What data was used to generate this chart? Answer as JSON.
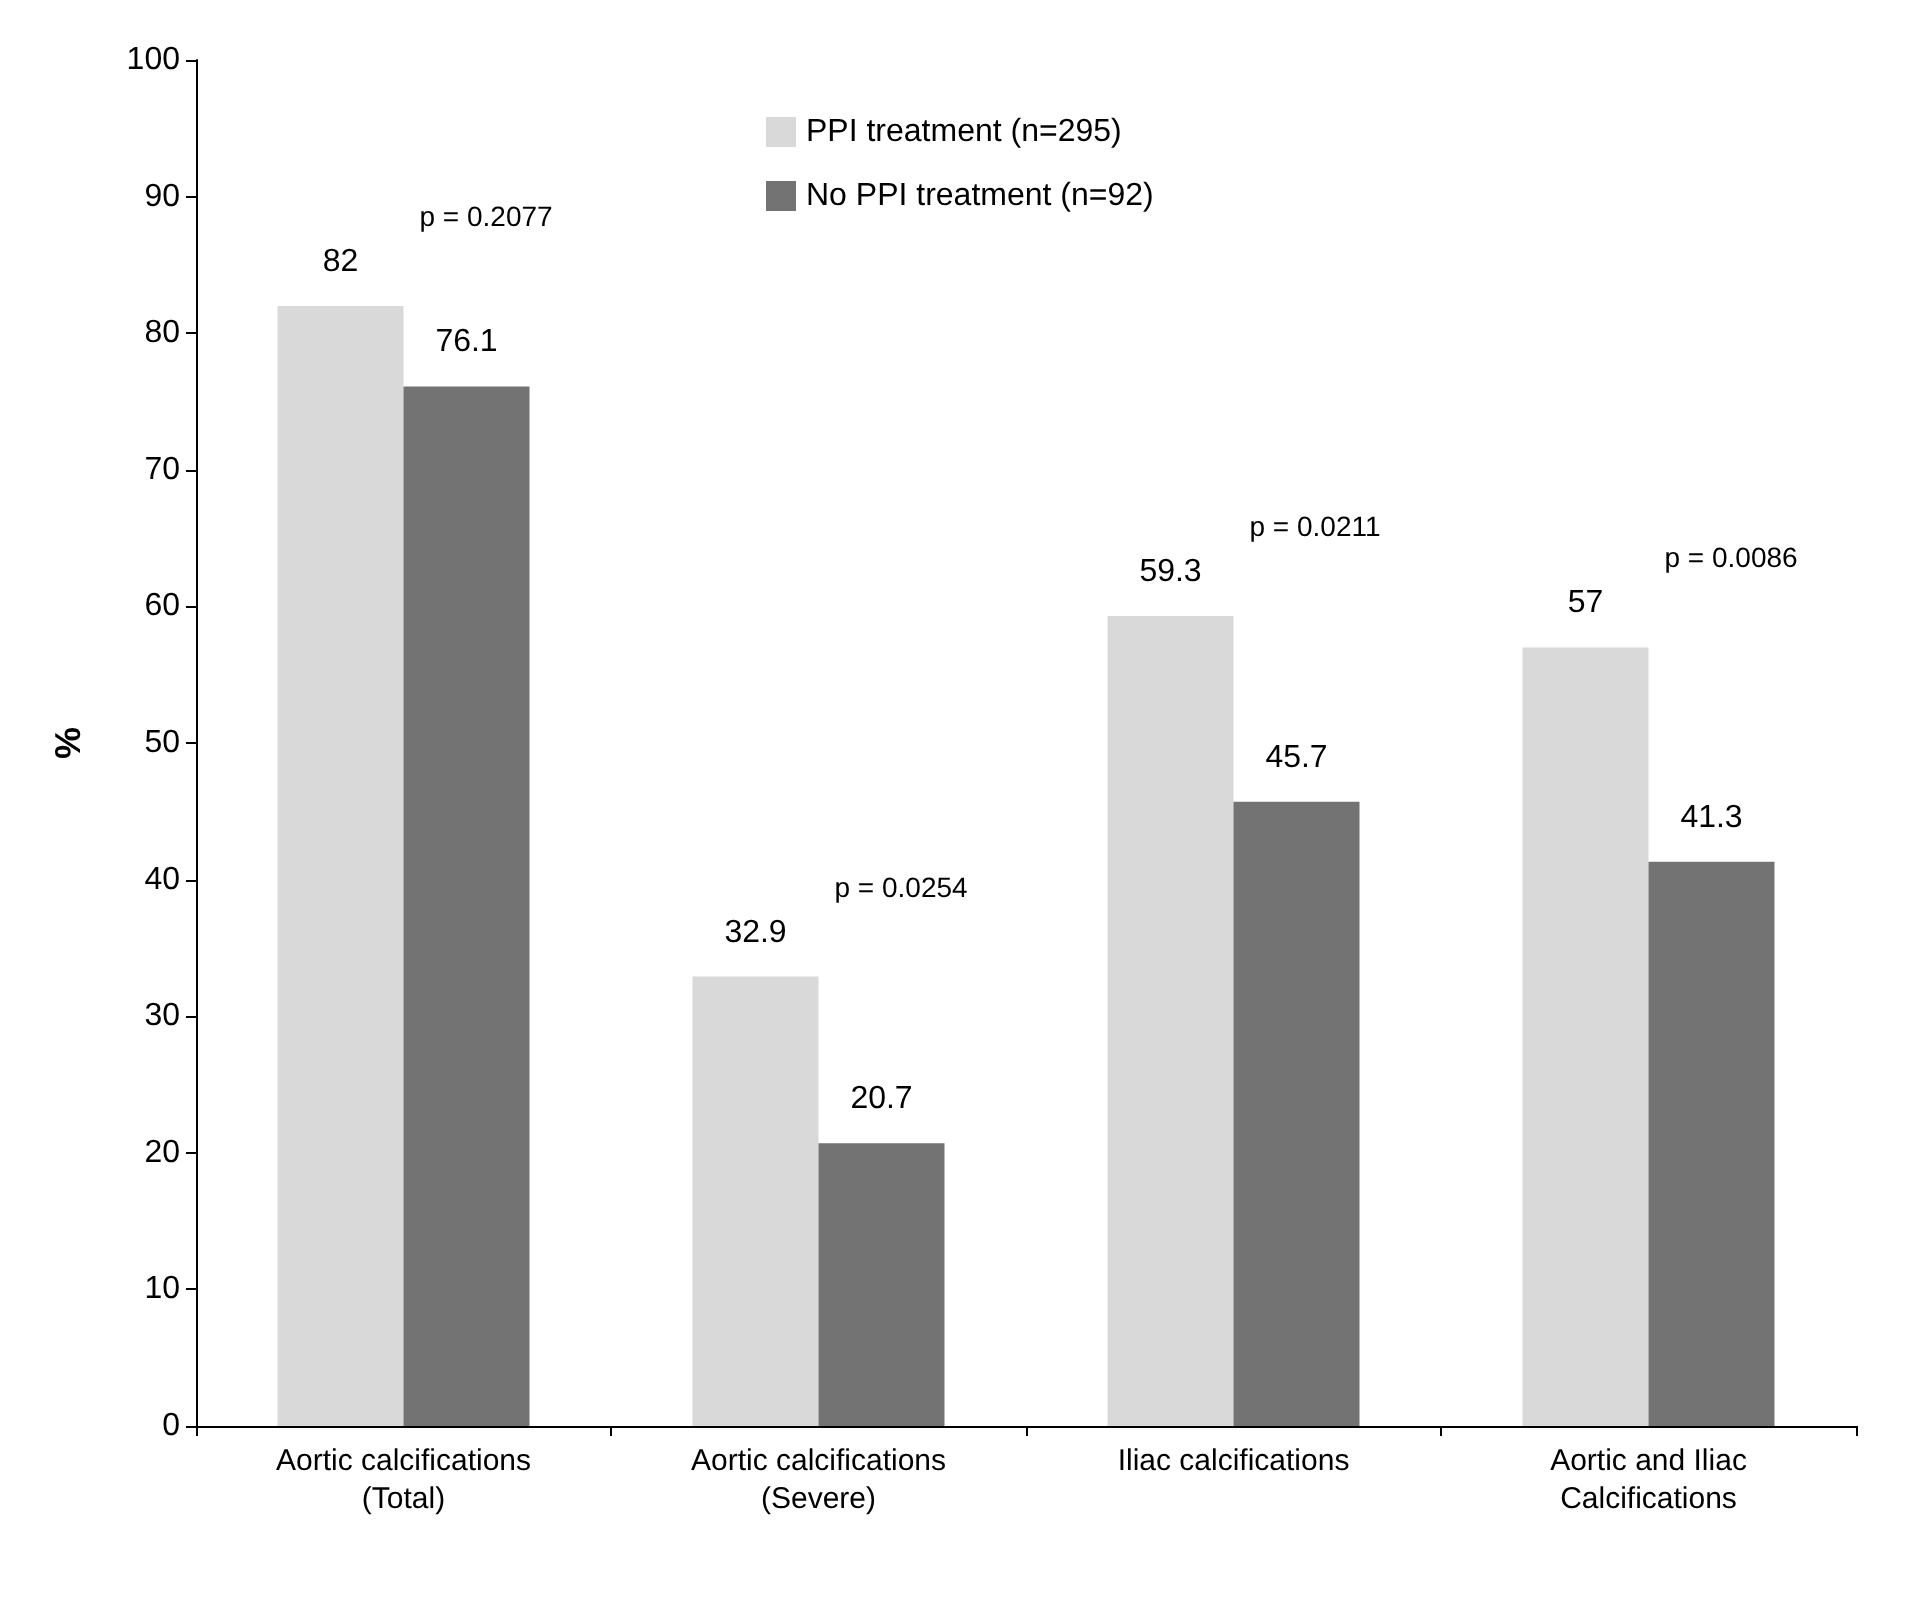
{
  "chart_data": {
    "type": "bar",
    "ylabel": "%",
    "categories": [
      "Aortic calcifications\n(Total)",
      "Aortic calcifications\n(Severe)",
      "Iliac calcifications",
      "Aortic and Iliac\nCalcifications"
    ],
    "series": [
      {
        "name": "PPI treatment (n=295)",
        "color": "#d9d9d9",
        "values": [
          82,
          32.9,
          59.3,
          57
        ]
      },
      {
        "name": "No PPI treatment (n=92)",
        "color": "#737373",
        "values": [
          76.1,
          20.7,
          45.7,
          41.3
        ]
      }
    ],
    "ylim": [
      0,
      100
    ],
    "yticks": [
      0,
      10,
      20,
      30,
      40,
      50,
      60,
      70,
      80,
      90,
      100
    ],
    "data_labels": true,
    "grid": false,
    "legend": "top",
    "annotations": [
      "p = 0.2077",
      "p = 0.0254",
      "p = 0.0211",
      "p = 0.0086"
    ]
  }
}
